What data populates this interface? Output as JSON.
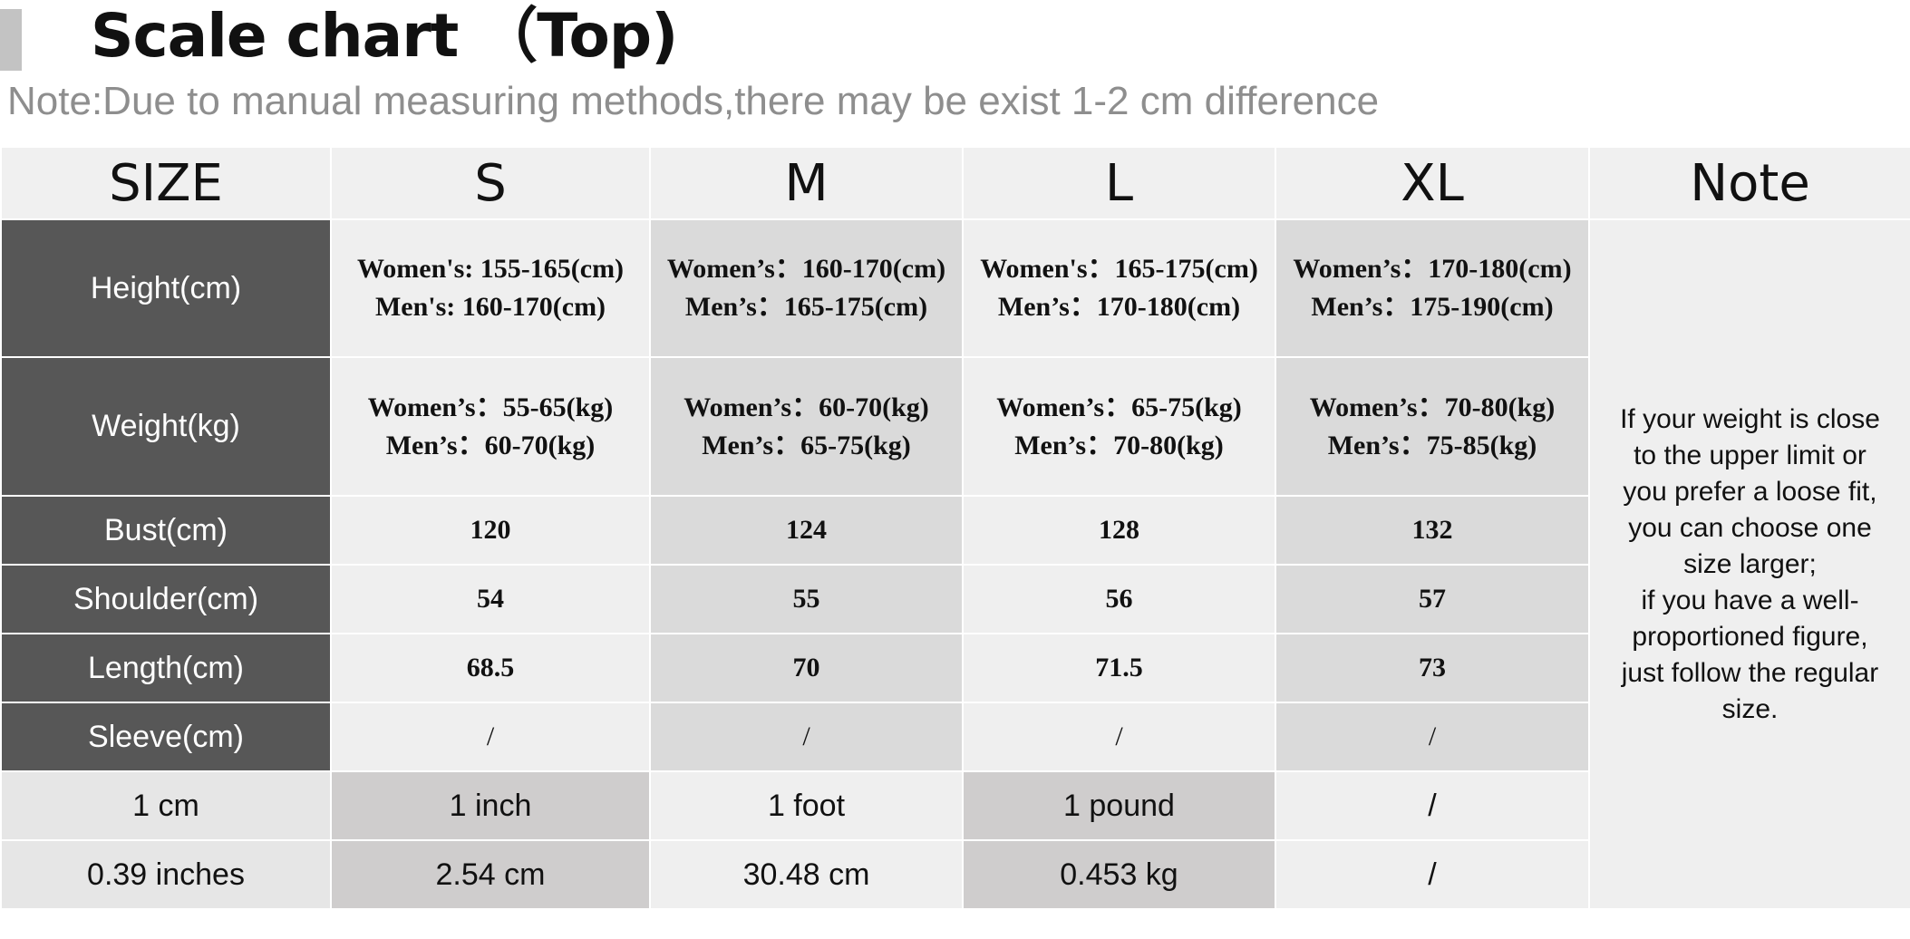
{
  "header": {
    "title": "Scale chart （Top)",
    "note": "Note:Due to manual measuring methods,there may be exist 1-2 cm difference"
  },
  "table": {
    "columns": [
      "SIZE",
      "S",
      "M",
      "L",
      "XL",
      "Note"
    ],
    "rows": [
      {
        "label": "Height(cm)",
        "cells": [
          [
            "Women's: 155-165(cm)",
            "Men's: 160-170(cm)"
          ],
          [
            "Women’s：160-170(cm)",
            "Men’s：165-175(cm)"
          ],
          [
            "Women's：165-175(cm)",
            "Men’s：170-180(cm)"
          ],
          [
            "Women’s：170-180(cm)",
            "Men’s：175-190(cm)"
          ]
        ]
      },
      {
        "label": "Weight(kg)",
        "cells": [
          [
            "Women’s：55-65(kg)",
            "Men’s：60-70(kg)"
          ],
          [
            "Women’s：60-70(kg)",
            "Men’s：65-75(kg)"
          ],
          [
            "Women’s：65-75(kg)",
            "Men’s：70-80(kg)"
          ],
          [
            "Women’s：70-80(kg)",
            "Men’s：75-85(kg)"
          ]
        ]
      },
      {
        "label": "Bust(cm)",
        "cells": [
          "120",
          "124",
          "128",
          "132"
        ]
      },
      {
        "label": "Shoulder(cm)",
        "cells": [
          "54",
          "55",
          "56",
          "57"
        ]
      },
      {
        "label": "Length(cm)",
        "cells": [
          "68.5",
          "70",
          "71.5",
          "73"
        ]
      },
      {
        "label": "Sleeve(cm)",
        "cells": [
          "/",
          "/",
          "/",
          "/"
        ]
      }
    ],
    "conversion_rows": [
      [
        "1 cm",
        "1 inch",
        "1 foot",
        "1 pound",
        "/"
      ],
      [
        "0.39 inches",
        "2.54 cm",
        "30.48 cm",
        "0.453 kg",
        "/"
      ]
    ],
    "note_lines": [
      "If your weight is close",
      "to the upper limit or",
      "you prefer a loose fit,",
      "you can choose one",
      "size larger;",
      "if you have a well-",
      "proportioned figure,",
      "just follow the regular",
      "size."
    ]
  },
  "colors": {
    "label_cell": "#575757",
    "header_bg": "#f0f0f0",
    "cell_light": "#efefef",
    "cell_dark": "#dadada",
    "accent_bar": "#c3c3c3",
    "note_text": "#8e8e8e"
  }
}
